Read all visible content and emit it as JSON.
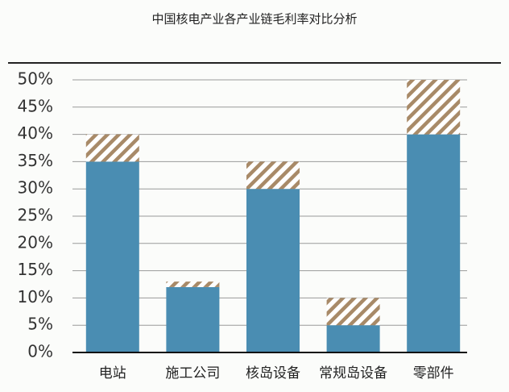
{
  "chart_data": {
    "type": "stacked-bar",
    "title": "中国核电产业各产业链毛利率对比分析",
    "categories": [
      "电站",
      "施工公司",
      "核岛设备",
      "常规岛设备",
      "零部件"
    ],
    "series": [
      {
        "color": "#4a8db2",
        "values": [
          35,
          12,
          30,
          5,
          40
        ]
      },
      {
        "color": "hatch",
        "values": [
          5,
          1,
          5,
          5,
          10
        ]
      }
    ],
    "ylim": [
      0,
      50
    ],
    "yticks": [
      {
        "value": 0,
        "label": "0%"
      },
      {
        "value": 5,
        "label": "5%"
      },
      {
        "value": 10,
        "label": "10%"
      },
      {
        "value": 15,
        "label": "15%"
      },
      {
        "value": 20,
        "label": "20%"
      },
      {
        "value": 25,
        "label": "25%"
      },
      {
        "value": 30,
        "label": "30%"
      },
      {
        "value": 35,
        "label": "35%"
      },
      {
        "value": 40,
        "label": "40%"
      },
      {
        "value": 45,
        "label": "45%"
      },
      {
        "value": 50,
        "label": "50%"
      }
    ],
    "grid": true
  }
}
